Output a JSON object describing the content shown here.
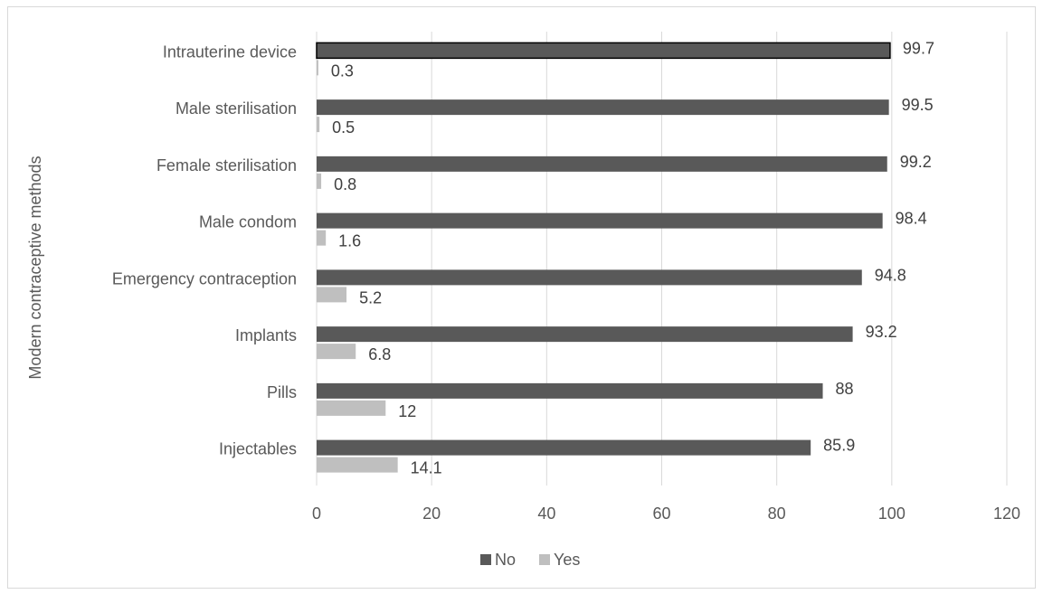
{
  "chart_data": {
    "type": "bar",
    "orientation": "horizontal",
    "title": "",
    "xlabel": "",
    "ylabel": "Modern contraceptive methods",
    "categories": [
      "Intrauterine device",
      "Male sterilisation",
      "Female sterilisation",
      "Male condom",
      "Emergency contraception",
      "Implants",
      "Pills",
      "Injectables"
    ],
    "series": [
      {
        "name": "No",
        "color": "#595959",
        "values": [
          99.7,
          99.5,
          99.2,
          98.4,
          94.8,
          93.2,
          88,
          85.9
        ]
      },
      {
        "name": "Yes",
        "color": "#bfbfbf",
        "values": [
          0.3,
          0.5,
          0.8,
          1.6,
          5.2,
          6.8,
          12,
          14.1
        ]
      }
    ],
    "xlim": [
      0,
      120
    ],
    "xticks": [
      "0",
      "20",
      "40",
      "60",
      "80",
      "100",
      "120"
    ],
    "grid": true,
    "legend": "bottom"
  }
}
